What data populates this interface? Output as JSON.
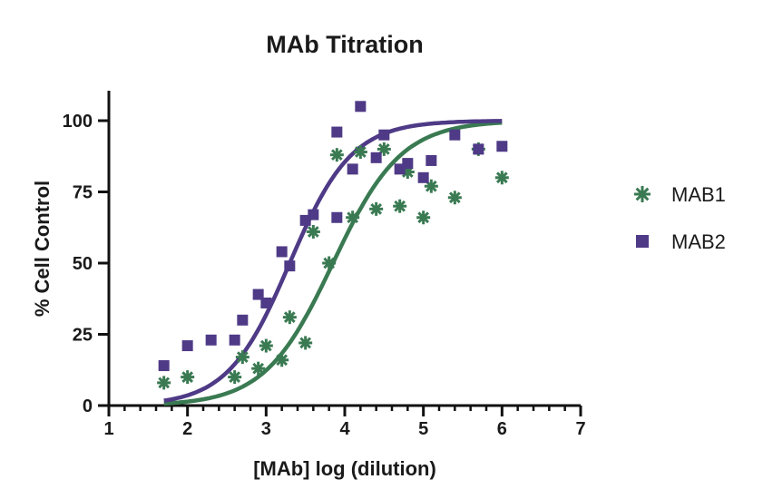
{
  "chart_data": {
    "type": "scatter",
    "title": "MAb Titration",
    "xlabel": "[MAb] log (dilution)",
    "ylabel": "% Cell Control",
    "xlim": [
      1,
      7
    ],
    "ylim": [
      0,
      110
    ],
    "x_ticks": [
      1,
      2,
      3,
      4,
      5,
      6,
      7
    ],
    "x_tick_labels": [
      "1",
      "2",
      "3",
      "4",
      "5",
      "6",
      "7"
    ],
    "x_minor_step": 0.2,
    "y_ticks": [
      0,
      25,
      50,
      75,
      100
    ],
    "y_tick_labels": [
      "0",
      "25",
      "50",
      "75",
      "100"
    ],
    "grid": false,
    "legend_position": "right",
    "series": [
      {
        "name": "MAB1",
        "marker": "asterisk",
        "color": "#3a7a52",
        "points": [
          [
            1.7,
            8
          ],
          [
            2.0,
            10
          ],
          [
            2.6,
            10
          ],
          [
            2.7,
            17
          ],
          [
            2.9,
            13
          ],
          [
            3.0,
            21
          ],
          [
            3.2,
            16
          ],
          [
            3.3,
            31
          ],
          [
            3.5,
            22
          ],
          [
            3.6,
            61
          ],
          [
            3.8,
            50
          ],
          [
            3.9,
            88
          ],
          [
            4.1,
            66
          ],
          [
            4.2,
            89
          ],
          [
            4.4,
            69
          ],
          [
            4.5,
            90
          ],
          [
            4.7,
            70
          ],
          [
            4.8,
            82
          ],
          [
            5.0,
            66
          ],
          [
            5.1,
            77
          ],
          [
            5.4,
            73
          ],
          [
            5.7,
            90
          ],
          [
            6.0,
            80
          ]
        ],
        "fit": {
          "model": "sigmoid",
          "bottom": 0,
          "top": 100,
          "x50": 3.85,
          "slope": 1.0,
          "x_range": [
            1.7,
            6.0
          ]
        }
      },
      {
        "name": "MAB2",
        "marker": "square",
        "color": "#4e3a86",
        "points": [
          [
            1.7,
            14
          ],
          [
            2.0,
            21
          ],
          [
            2.3,
            23
          ],
          [
            2.6,
            23
          ],
          [
            2.7,
            30
          ],
          [
            2.9,
            39
          ],
          [
            3.0,
            36
          ],
          [
            3.2,
            54
          ],
          [
            3.3,
            49
          ],
          [
            3.5,
            65
          ],
          [
            3.6,
            67
          ],
          [
            3.9,
            96
          ],
          [
            3.9,
            66
          ],
          [
            4.1,
            83
          ],
          [
            4.2,
            105
          ],
          [
            4.4,
            87
          ],
          [
            4.5,
            95
          ],
          [
            4.7,
            83
          ],
          [
            4.8,
            85
          ],
          [
            5.0,
            80
          ],
          [
            5.1,
            86
          ],
          [
            5.4,
            95
          ],
          [
            5.7,
            90
          ],
          [
            6.0,
            91
          ]
        ],
        "fit": {
          "model": "sigmoid",
          "bottom": 0,
          "top": 100,
          "x50": 3.3,
          "slope": 1.1,
          "x_range": [
            1.7,
            6.0
          ]
        }
      }
    ]
  }
}
